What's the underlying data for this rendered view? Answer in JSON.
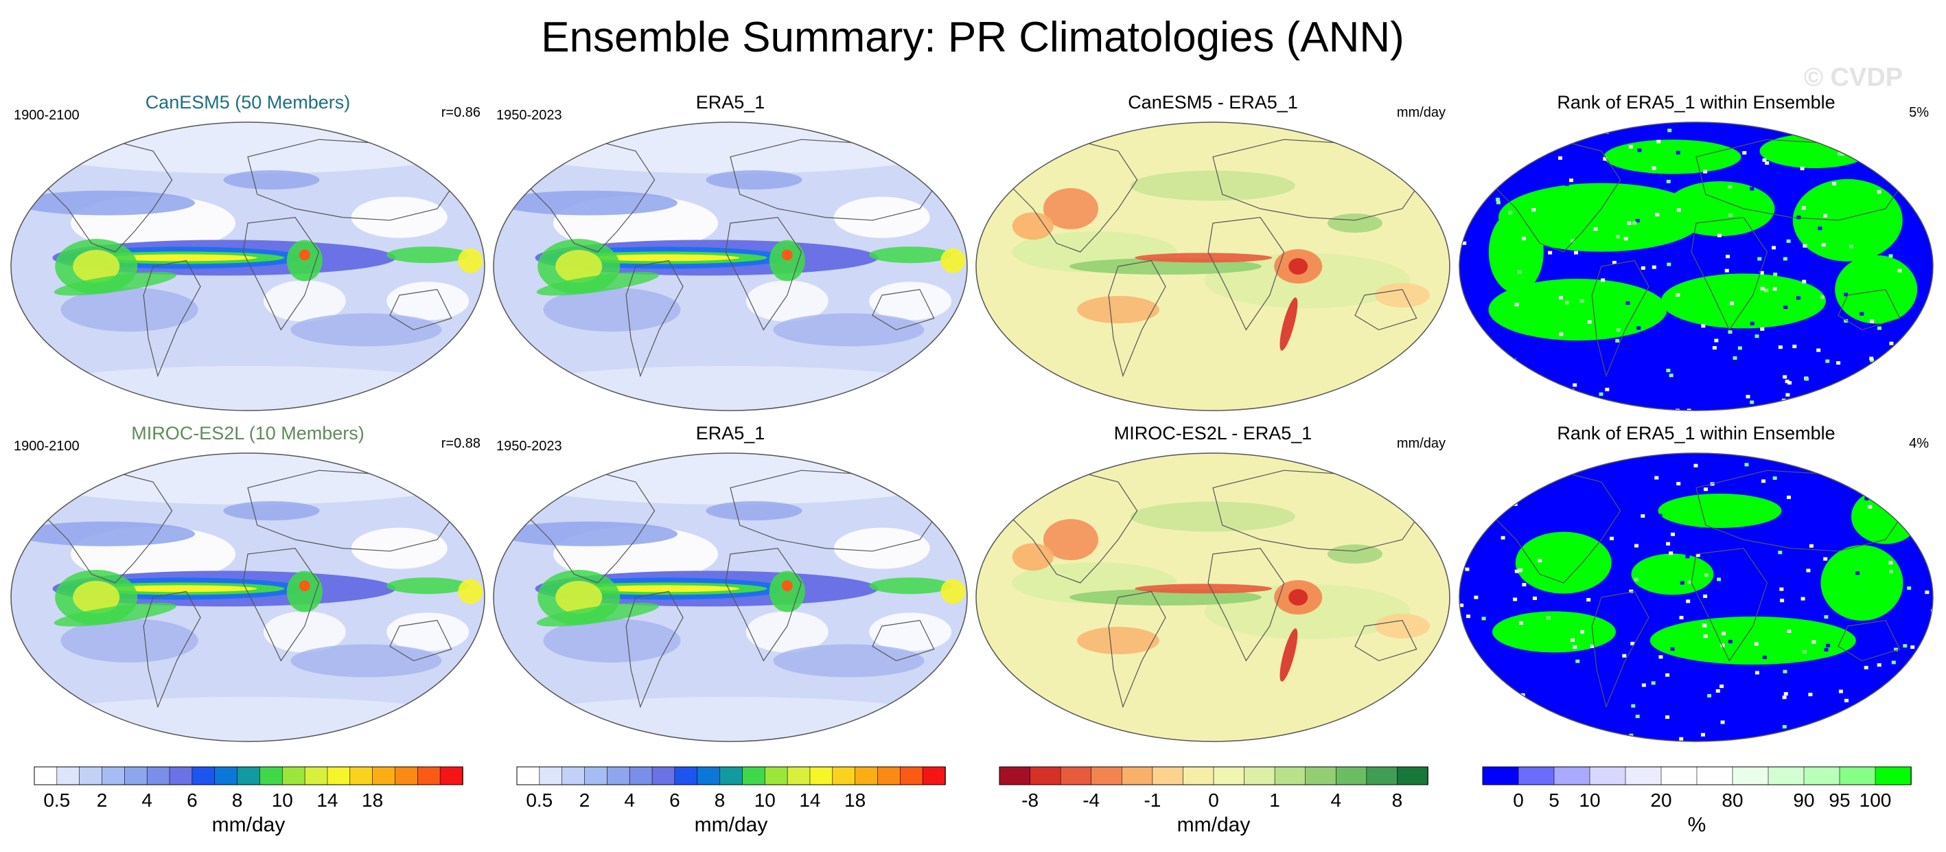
{
  "title": "Ensemble Summary: PR Climatologies (ANN)",
  "watermark": "© CVDP",
  "panels": [
    {
      "title": "CanESM5 (50 Members)",
      "title_color": "#1b6f80",
      "left_label": "1900-2100",
      "right_label": "r=0.86",
      "kind": "clim",
      "row": 0,
      "col": 0
    },
    {
      "title": "ERA5_1",
      "title_color": "#000000",
      "left_label": "1950-2023",
      "right_label": "",
      "kind": "clim",
      "row": 0,
      "col": 1
    },
    {
      "title": "CanESM5 - ERA5_1",
      "title_color": "#000000",
      "left_label": "",
      "right_label": "mm/day",
      "kind": "diff",
      "row": 0,
      "col": 2
    },
    {
      "title": "Rank of ERA5_1 within Ensemble",
      "title_color": "#000000",
      "left_label": "",
      "right_label": "5%",
      "kind": "rank",
      "row": 0,
      "col": 3
    },
    {
      "title": "MIROC-ES2L (10 Members)",
      "title_color": "#5f8a5a",
      "left_label": "1900-2100",
      "right_label": "r=0.88",
      "kind": "clim",
      "row": 1,
      "col": 0
    },
    {
      "title": "ERA5_1",
      "title_color": "#000000",
      "left_label": "1950-2023",
      "right_label": "",
      "kind": "clim",
      "row": 1,
      "col": 1
    },
    {
      "title": "MIROC-ES2L - ERA5_1",
      "title_color": "#000000",
      "left_label": "",
      "right_label": "mm/day",
      "kind": "diff",
      "row": 1,
      "col": 2
    },
    {
      "title": "Rank of ERA5_1 within Ensemble",
      "title_color": "#000000",
      "left_label": "",
      "right_label": "4%",
      "kind": "rank",
      "row": 1,
      "col": 3
    }
  ],
  "colorbars": [
    {
      "kind": "clim",
      "unit": "mm/day",
      "colors": [
        "#ffffff",
        "#dde5fb",
        "#c3d1f8",
        "#a7bcf3",
        "#8da6ee",
        "#7a8fea",
        "#6a72e6",
        "#1e55f0",
        "#0a78d8",
        "#119aa0",
        "#3fd84a",
        "#9ce63a",
        "#d8f03c",
        "#f5f52a",
        "#fbd21e",
        "#fbae14",
        "#fb8a14",
        "#fb5a14",
        "#f71414"
      ],
      "labels": [
        "0.5",
        "2",
        "4",
        "6",
        "8",
        "10",
        "14",
        "18"
      ],
      "label_edges": [
        1,
        3,
        5,
        7,
        9,
        11,
        13,
        15
      ]
    },
    {
      "kind": "clim",
      "unit": "mm/day",
      "colors": [
        "#ffffff",
        "#dde5fb",
        "#c3d1f8",
        "#a7bcf3",
        "#8da6ee",
        "#7a8fea",
        "#6a72e6",
        "#1e55f0",
        "#0a78d8",
        "#119aa0",
        "#3fd84a",
        "#9ce63a",
        "#d8f03c",
        "#f5f52a",
        "#fbd21e",
        "#fbae14",
        "#fb8a14",
        "#fb5a14",
        "#f71414"
      ],
      "labels": [
        "0.5",
        "2",
        "4",
        "6",
        "8",
        "10",
        "14",
        "18"
      ],
      "label_edges": [
        1,
        3,
        5,
        7,
        9,
        11,
        13,
        15
      ]
    },
    {
      "kind": "diff",
      "unit": "mm/day",
      "colors": [
        "#a50f26",
        "#d73027",
        "#e85a3c",
        "#f4844f",
        "#f9b06a",
        "#fdd28f",
        "#f6eea6",
        "#f0f5b0",
        "#dcefa4",
        "#b9e18a",
        "#93cf72",
        "#6bbd62",
        "#3f9e53",
        "#18783a"
      ],
      "labels": [
        "-8",
        "-4",
        "-1",
        "0",
        "1",
        "4",
        "8"
      ],
      "label_edges": [
        1,
        3,
        5,
        7,
        9,
        11,
        13
      ]
    },
    {
      "kind": "rank",
      "unit": "%",
      "colors": [
        "#0000ff",
        "#6b6bff",
        "#a9a9ff",
        "#d7d7ff",
        "#ececff",
        "#ffffff",
        "#ffffff",
        "#eaffea",
        "#d2ffd2",
        "#b9ffb9",
        "#86ff86",
        "#00ff00"
      ],
      "labels": [
        "0",
        "5",
        "10",
        "20",
        "80",
        "90",
        "95",
        "100"
      ],
      "label_edges": [
        1,
        2,
        3,
        5,
        7,
        9,
        10,
        11
      ]
    }
  ],
  "chart_data": {
    "type": "heatmap",
    "title": "Ensemble Summary: PR Climatologies (ANN)",
    "variable": "PR",
    "season": "ANN",
    "units": "mm/day",
    "rows": [
      {
        "model": "CanESM5",
        "members": 50,
        "model_period": "1900-2100",
        "obs": "ERA5_1",
        "obs_period": "1950-2023",
        "pattern_correlation": 0.86,
        "rank_percent": 5
      },
      {
        "model": "MIROC-ES2L",
        "members": 10,
        "model_period": "1900-2100",
        "obs": "ERA5_1",
        "obs_period": "1950-2023",
        "pattern_correlation": 0.88,
        "rank_percent": 4
      }
    ],
    "climatology_levels": [
      0.5,
      1,
      2,
      3,
      4,
      5,
      6,
      7,
      8,
      9,
      10,
      12,
      14,
      16,
      18
    ],
    "difference_levels": [
      -8,
      -6,
      -4,
      -2,
      -1,
      -0.5,
      0,
      0.5,
      1,
      2,
      4,
      6,
      8
    ],
    "rank_levels": [
      0,
      5,
      10,
      20,
      80,
      90,
      95,
      100
    ]
  },
  "colors": {
    "ocean_bg": "#c9d3f6",
    "land_line": "#555555"
  }
}
